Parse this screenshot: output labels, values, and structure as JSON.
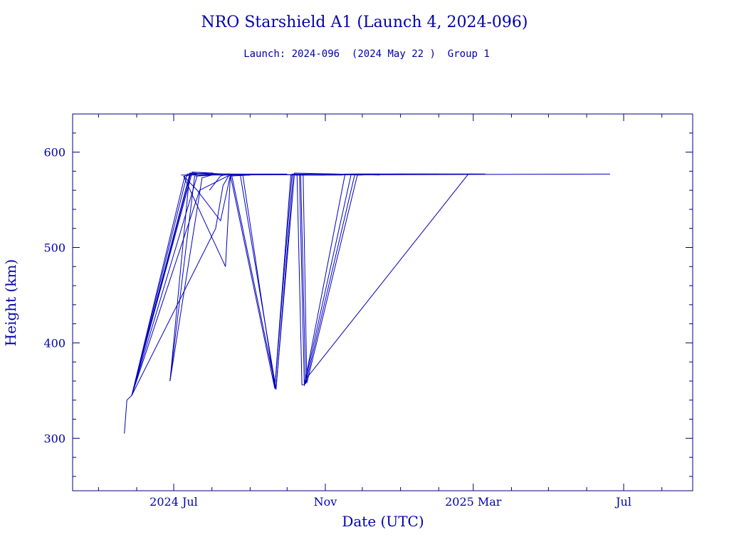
{
  "chart_data": {
    "type": "line",
    "title": "NRO Starshield A1 (Launch 4, 2024-096)",
    "subtitle": "Launch: 2024-096  (2024 May 22 )  Group 1",
    "xlabel": "Date (UTC)",
    "ylabel": "Height (km)",
    "x_scale": "date",
    "xlim": [
      "2024-04-10",
      "2025-08-26"
    ],
    "ylim": [
      245,
      640
    ],
    "x_ticks": [
      {
        "date": "2024-07-01",
        "label": "2024 Jul"
      },
      {
        "date": "2024-11-01",
        "label": "Nov"
      },
      {
        "date": "2025-03-01",
        "label": "2025 Mar"
      },
      {
        "date": "2025-07-01",
        "label": "Jul"
      }
    ],
    "y_ticks": [
      {
        "value": 300,
        "label": "300"
      },
      {
        "value": 400,
        "label": "400"
      },
      {
        "value": 500,
        "label": "500"
      },
      {
        "value": 600,
        "label": "600"
      }
    ],
    "grid": false,
    "legend": "none",
    "colors": {
      "axes": "#000080",
      "text": "#0000aa",
      "series": "#0000bb"
    },
    "series": [
      {
        "x": [
          "2024-05-22",
          "2024-05-24",
          "2024-05-28",
          "2024-07-14",
          "2024-07-28",
          "2024-08-10",
          "2024-08-16"
        ],
        "y": [
          305,
          340,
          345,
          577,
          578,
          577,
          577
        ]
      },
      {
        "x": [
          "2024-05-28",
          "2024-07-12",
          "2024-07-27"
        ],
        "y": [
          345,
          577,
          578
        ]
      },
      {
        "x": [
          "2024-05-28",
          "2024-07-15",
          "2024-07-30",
          "2024-08-15"
        ],
        "y": [
          345,
          578,
          577,
          577
        ]
      },
      {
        "x": [
          "2024-05-28",
          "2024-07-16",
          "2024-08-02"
        ],
        "y": [
          345,
          579,
          578
        ]
      },
      {
        "x": [
          "2024-05-28",
          "2024-07-10",
          "2024-07-20"
        ],
        "y": [
          345,
          575,
          577
        ]
      },
      {
        "x": [
          "2024-05-28",
          "2024-07-20",
          "2024-08-02",
          "2024-08-16",
          "2025-01-01",
          "2025-03-10"
        ],
        "y": [
          345,
          575,
          576,
          576,
          577,
          577
        ]
      },
      {
        "x": [
          "2024-05-28",
          "2024-08-04",
          "2024-08-10",
          "2024-08-15",
          "2024-09-01"
        ],
        "y": [
          345,
          520,
          565,
          576,
          576
        ]
      },
      {
        "x": [
          "2024-05-28",
          "2024-07-22",
          "2024-08-14",
          "2024-08-18",
          "2024-10-01"
        ],
        "y": [
          345,
          560,
          575,
          577,
          577
        ]
      },
      {
        "x": [
          "2024-07-07",
          "2024-07-16",
          "2024-08-15",
          "2024-11-01"
        ],
        "y": [
          576,
          576,
          577,
          576
        ]
      },
      {
        "x": [
          "2024-07-09",
          "2024-08-12",
          "2024-08-16",
          "2024-09-01"
        ],
        "y": [
          575,
          480,
          575,
          576
        ]
      },
      {
        "x": [
          "2024-07-09",
          "2024-07-20",
          "2024-08-08",
          "2024-08-16"
        ],
        "y": [
          575,
          560,
          528,
          576
        ]
      },
      {
        "x": [
          "2024-06-28",
          "2024-07-14",
          "2024-07-30",
          "2024-08-15"
        ],
        "y": [
          360,
          578,
          577,
          577
        ]
      },
      {
        "x": [
          "2024-06-28",
          "2024-07-18",
          "2024-07-30"
        ],
        "y": [
          360,
          575,
          576
        ]
      },
      {
        "x": [
          "2024-06-28",
          "2024-07-24",
          "2024-08-01"
        ],
        "y": [
          360,
          573,
          576
        ]
      },
      {
        "x": [
          "2024-07-30",
          "2024-08-08",
          "2024-08-14",
          "2024-08-17",
          "2024-09-01"
        ],
        "y": [
          560,
          575,
          577,
          577,
          576
        ]
      },
      {
        "x": [
          "2024-08-16",
          "2024-09-21",
          "2024-10-05",
          "2024-10-08",
          "2025-06-20"
        ],
        "y": [
          576,
          352,
          577,
          576,
          577
        ]
      },
      {
        "x": [
          "2024-08-17",
          "2024-09-22",
          "2024-10-06",
          "2024-12-01"
        ],
        "y": [
          576,
          351,
          577,
          576
        ]
      },
      {
        "x": [
          "2024-08-24",
          "2024-09-22",
          "2024-10-07",
          "2024-12-15"
        ],
        "y": [
          576,
          352,
          578,
          576
        ]
      },
      {
        "x": [
          "2024-08-26",
          "2024-09-21",
          "2024-10-04",
          "2024-11-15"
        ],
        "y": [
          576,
          353,
          576,
          576
        ]
      },
      {
        "x": [
          "2024-10-09",
          "2024-10-13",
          "2024-10-15",
          "2024-11-17",
          "2024-12-15"
        ],
        "y": [
          577,
          356,
          356,
          577,
          577
        ]
      },
      {
        "x": [
          "2024-10-11",
          "2024-10-15",
          "2024-11-22",
          "2025-02-01"
        ],
        "y": [
          577,
          355,
          577,
          577
        ]
      },
      {
        "x": [
          "2024-10-12",
          "2024-10-16",
          "2024-11-25",
          "2025-03-01"
        ],
        "y": [
          577,
          357,
          577,
          577
        ]
      },
      {
        "x": [
          "2024-10-14",
          "2024-10-17",
          "2024-11-27",
          "2025-01-01"
        ],
        "y": [
          577,
          358,
          576,
          577
        ]
      },
      {
        "x": [
          "2024-10-15",
          "2025-02-25",
          "2025-03-11"
        ],
        "y": [
          360,
          577,
          577
        ]
      }
    ]
  }
}
